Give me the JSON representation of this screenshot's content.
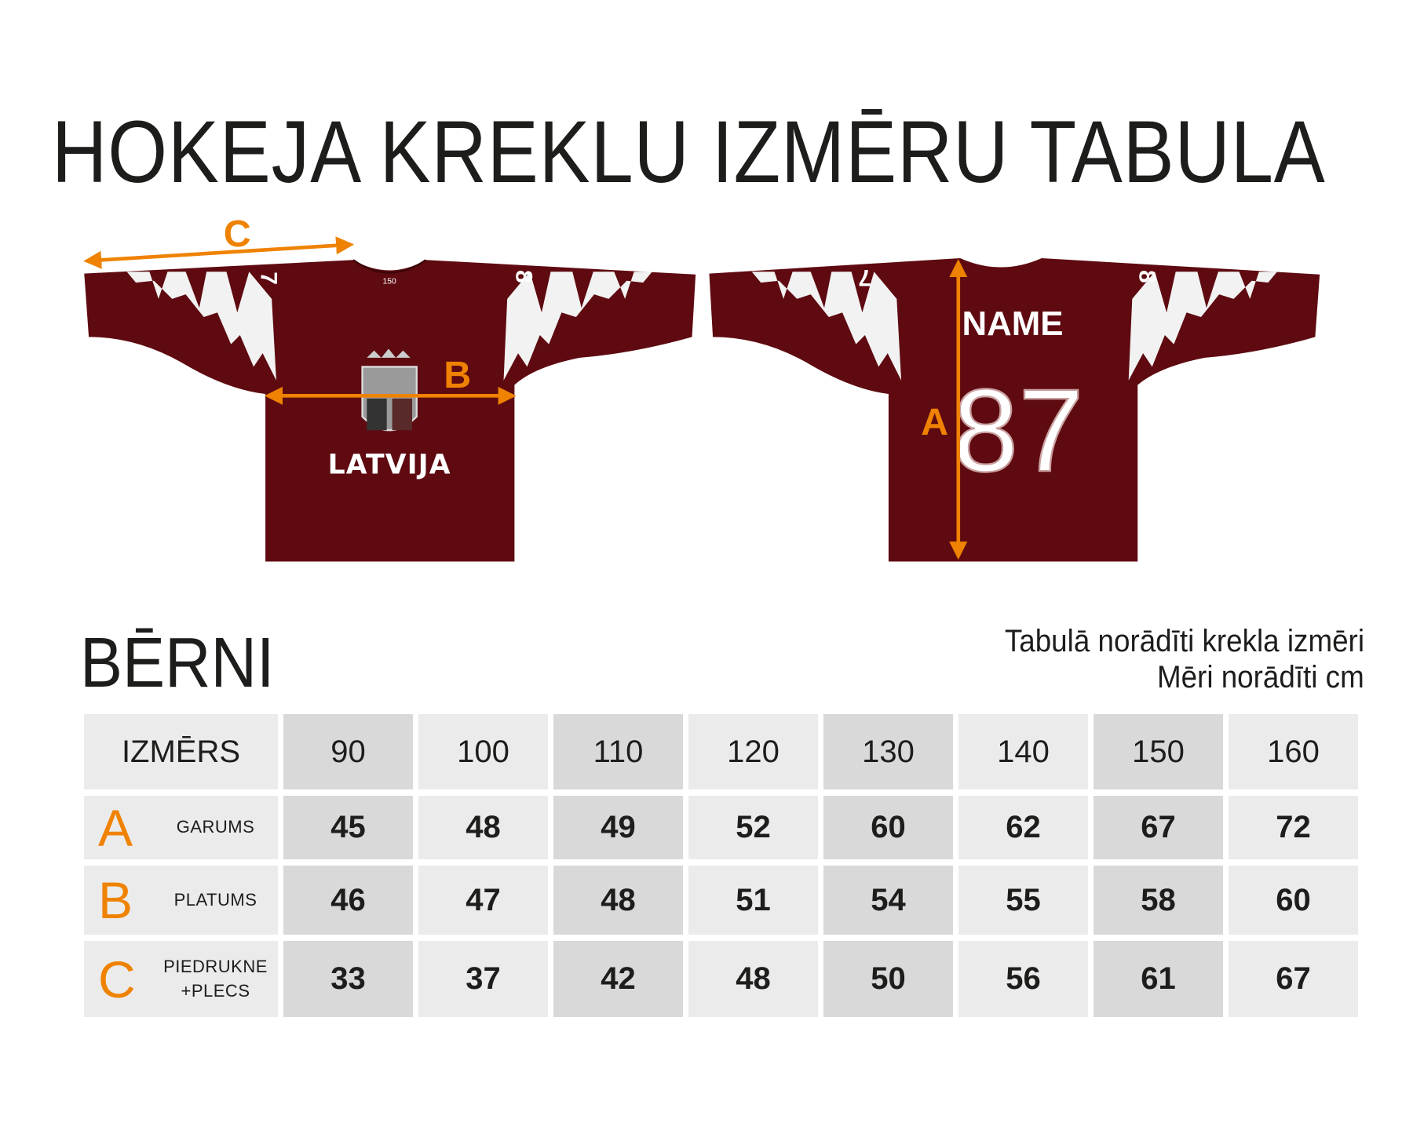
{
  "title": "HOKEJA KREKLU IZMĒRU TABULA",
  "jerseys": {
    "front_text": "LATVIJA",
    "collar_text": "150",
    "back_name": "NAME",
    "back_number": "87",
    "sleeve_left_number": "7",
    "sleeve_right_number": "8",
    "measure_labels": {
      "a": "A",
      "b": "B",
      "c": "C"
    },
    "colors": {
      "jersey": "#5e0a10",
      "accent": "#ef8200",
      "stripe": "#ffffff"
    }
  },
  "section_title": "BĒRNI",
  "notes": [
    "Tabulā norādīti krekla izmēri",
    "Mēri norādīti cm"
  ],
  "table": {
    "header_label": "IZMĒRS",
    "sizes": [
      "90",
      "100",
      "110",
      "120",
      "130",
      "140",
      "150",
      "160"
    ],
    "rows": [
      {
        "letter": "A",
        "label": "GARUMS",
        "label2": "",
        "values": [
          "45",
          "48",
          "49",
          "52",
          "60",
          "62",
          "67",
          "72"
        ]
      },
      {
        "letter": "B",
        "label": "PLATUMS",
        "label2": "",
        "values": [
          "46",
          "47",
          "48",
          "51",
          "54",
          "55",
          "58",
          "60"
        ]
      },
      {
        "letter": "C",
        "label": "PIEDRUKNE",
        "label2": "+PLECS",
        "values": [
          "33",
          "37",
          "42",
          "48",
          "50",
          "56",
          "61",
          "67"
        ]
      }
    ]
  }
}
